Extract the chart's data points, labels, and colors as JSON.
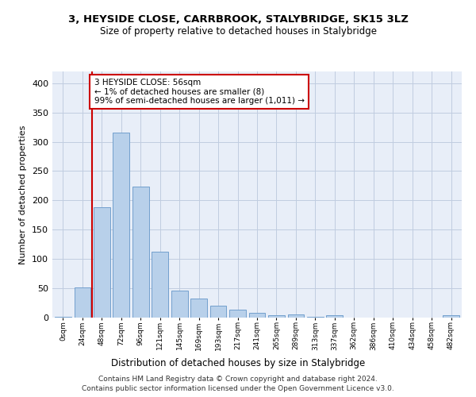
{
  "title": "3, HEYSIDE CLOSE, CARRBROOK, STALYBRIDGE, SK15 3LZ",
  "subtitle": "Size of property relative to detached houses in Stalybridge",
  "xlabel": "Distribution of detached houses by size in Stalybridge",
  "ylabel": "Number of detached properties",
  "bar_labels": [
    "0sqm",
    "24sqm",
    "48sqm",
    "72sqm",
    "96sqm",
    "121sqm",
    "145sqm",
    "169sqm",
    "193sqm",
    "217sqm",
    "241sqm",
    "265sqm",
    "289sqm",
    "313sqm",
    "337sqm",
    "362sqm",
    "386sqm",
    "410sqm",
    "434sqm",
    "458sqm",
    "482sqm"
  ],
  "bar_values": [
    2,
    52,
    188,
    315,
    224,
    113,
    46,
    32,
    20,
    13,
    8,
    4,
    5,
    2,
    4,
    0,
    0,
    0,
    0,
    0,
    4
  ],
  "bar_color": "#b8d0ea",
  "bar_edge_color": "#6496c8",
  "property_line_x": 1.5,
  "property_line_color": "#cc0000",
  "annotation_text": "3 HEYSIDE CLOSE: 56sqm\n← 1% of detached houses are smaller (8)\n99% of semi-detached houses are larger (1,011) →",
  "annotation_box_color": "#cc0000",
  "ylim": [
    0,
    420
  ],
  "yticks": [
    0,
    50,
    100,
    150,
    200,
    250,
    300,
    350,
    400
  ],
  "footer_line1": "Contains HM Land Registry data © Crown copyright and database right 2024.",
  "footer_line2": "Contains public sector information licensed under the Open Government Licence v3.0.",
  "background_color": "#e8eef8",
  "grid_color": "#c0cce0"
}
